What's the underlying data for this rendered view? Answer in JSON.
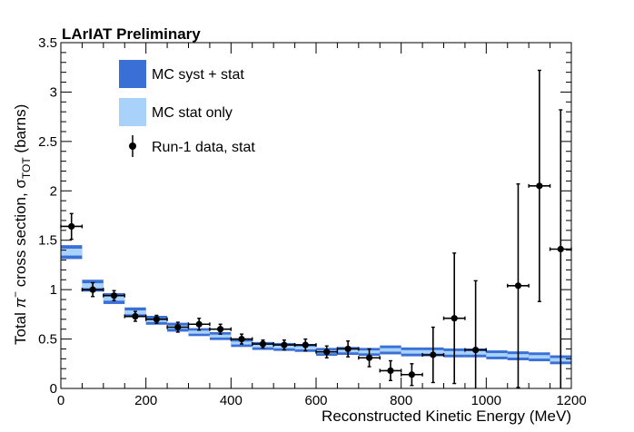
{
  "chart_data": {
    "type": "scatter",
    "title": "LArIAT Preliminary",
    "xlabel": "Reconstructed Kinetic Energy (MeV)",
    "ylabel": "Total π⁻ cross section, σTOT (barns)",
    "ylabel_parts": {
      "prefix": "Total ",
      "pi": "π",
      "minus": "−",
      "mid": " cross section, σ",
      "sub": "TOT",
      "suffix": " (barns)"
    },
    "xlim": [
      0,
      1200
    ],
    "ylim": [
      0,
      3.5
    ],
    "x_ticks": [
      0,
      200,
      400,
      600,
      800,
      1000,
      1200
    ],
    "y_ticks": [
      0,
      0.5,
      1,
      1.5,
      2,
      2.5,
      3,
      3.5
    ],
    "x_tick_labels": [
      "0",
      "200",
      "400",
      "600",
      "800",
      "1000",
      "1200"
    ],
    "y_tick_labels": [
      "0",
      "0.5",
      "1",
      "1.5",
      "2",
      "2.5",
      "3",
      "3.5"
    ],
    "legend": {
      "position": "top-left",
      "entries": [
        {
          "label": "MC syst + stat",
          "kind": "box",
          "color": "#3a6fd6"
        },
        {
          "label": "MC stat only",
          "kind": "box",
          "color": "#a8d2fa"
        },
        {
          "label": "Run-1 data, stat",
          "kind": "marker",
          "color": "#000000"
        }
      ]
    },
    "mc": {
      "bin_width": 50,
      "bins": [
        {
          "x_low": 0,
          "value": 1.38,
          "syst": 0.07,
          "stat": 0.035
        },
        {
          "x_low": 50,
          "value": 1.04,
          "syst": 0.06,
          "stat": 0.025
        },
        {
          "x_low": 100,
          "value": 0.91,
          "syst": 0.055,
          "stat": 0.022
        },
        {
          "x_low": 150,
          "value": 0.77,
          "syst": 0.05,
          "stat": 0.02
        },
        {
          "x_low": 200,
          "value": 0.69,
          "syst": 0.045,
          "stat": 0.018
        },
        {
          "x_low": 250,
          "value": 0.62,
          "syst": 0.045,
          "stat": 0.017
        },
        {
          "x_low": 300,
          "value": 0.57,
          "syst": 0.04,
          "stat": 0.016
        },
        {
          "x_low": 350,
          "value": 0.53,
          "syst": 0.04,
          "stat": 0.015
        },
        {
          "x_low": 400,
          "value": 0.46,
          "syst": 0.04,
          "stat": 0.015
        },
        {
          "x_low": 450,
          "value": 0.43,
          "syst": 0.04,
          "stat": 0.015
        },
        {
          "x_low": 500,
          "value": 0.42,
          "syst": 0.04,
          "stat": 0.015
        },
        {
          "x_low": 550,
          "value": 0.41,
          "syst": 0.04,
          "stat": 0.015
        },
        {
          "x_low": 600,
          "value": 0.37,
          "syst": 0.04,
          "stat": 0.015
        },
        {
          "x_low": 650,
          "value": 0.38,
          "syst": 0.04,
          "stat": 0.015
        },
        {
          "x_low": 700,
          "value": 0.37,
          "syst": 0.04,
          "stat": 0.015
        },
        {
          "x_low": 750,
          "value": 0.39,
          "syst": 0.045,
          "stat": 0.018
        },
        {
          "x_low": 800,
          "value": 0.37,
          "syst": 0.045,
          "stat": 0.018
        },
        {
          "x_low": 850,
          "value": 0.37,
          "syst": 0.045,
          "stat": 0.018
        },
        {
          "x_low": 900,
          "value": 0.36,
          "syst": 0.045,
          "stat": 0.018
        },
        {
          "x_low": 950,
          "value": 0.36,
          "syst": 0.045,
          "stat": 0.018
        },
        {
          "x_low": 1000,
          "value": 0.34,
          "syst": 0.045,
          "stat": 0.018
        },
        {
          "x_low": 1050,
          "value": 0.33,
          "syst": 0.045,
          "stat": 0.018
        },
        {
          "x_low": 1100,
          "value": 0.32,
          "syst": 0.045,
          "stat": 0.018
        },
        {
          "x_low": 1150,
          "value": 0.29,
          "syst": 0.045,
          "stat": 0.018
        }
      ]
    },
    "data": {
      "name": "Run-1 data, stat",
      "x_err": 25,
      "points": [
        {
          "x": 25,
          "y": 1.64,
          "err": 0.13
        },
        {
          "x": 75,
          "y": 1.0,
          "err": 0.07
        },
        {
          "x": 125,
          "y": 0.94,
          "err": 0.05
        },
        {
          "x": 175,
          "y": 0.73,
          "err": 0.05
        },
        {
          "x": 225,
          "y": 0.7,
          "err": 0.04
        },
        {
          "x": 275,
          "y": 0.62,
          "err": 0.05
        },
        {
          "x": 325,
          "y": 0.65,
          "err": 0.06
        },
        {
          "x": 375,
          "y": 0.6,
          "err": 0.05
        },
        {
          "x": 425,
          "y": 0.5,
          "err": 0.05
        },
        {
          "x": 475,
          "y": 0.45,
          "err": 0.04
        },
        {
          "x": 525,
          "y": 0.44,
          "err": 0.05
        },
        {
          "x": 575,
          "y": 0.44,
          "err": 0.06
        },
        {
          "x": 625,
          "y": 0.37,
          "err": 0.06
        },
        {
          "x": 675,
          "y": 0.4,
          "err": 0.08
        },
        {
          "x": 725,
          "y": 0.31,
          "err": 0.09
        },
        {
          "x": 775,
          "y": 0.18,
          "err": 0.1
        },
        {
          "x": 825,
          "y": 0.14,
          "err": 0.11
        },
        {
          "x": 875,
          "y": 0.34,
          "err": 0.28
        },
        {
          "x": 925,
          "y": 0.71,
          "err": 0.66
        },
        {
          "x": 975,
          "y": 0.39,
          "err": 0.7
        },
        {
          "x": 1075,
          "y": 1.04,
          "err": 1.03
        },
        {
          "x": 1125,
          "y": 2.05,
          "err": 1.17
        },
        {
          "x": 1175,
          "y": 1.41,
          "err": 1.41
        }
      ]
    },
    "colors": {
      "mc_syst": "#3a6fd6",
      "mc_stat": "#a8d2fa",
      "data": "#000000"
    }
  }
}
